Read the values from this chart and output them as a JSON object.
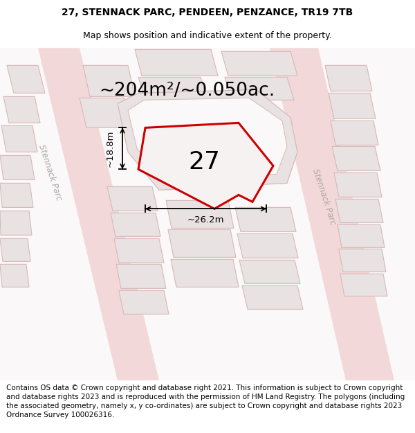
{
  "title_line1": "27, STENNACK PARC, PENDEEN, PENZANCE, TR19 7TB",
  "title_line2": "Map shows position and indicative extent of the property.",
  "area_label": "~204m²/~0.050ac.",
  "house_number": "27",
  "dim_width": "~26.2m",
  "dim_height": "~18.8m",
  "footer_text": "Contains OS data © Crown copyright and database right 2021. This information is subject to Crown copyright and database rights 2023 and is reproduced with the permission of HM Land Registry. The polygons (including the associated geometry, namely x, y co-ordinates) are subject to Crown copyright and database rights 2023 Ordnance Survey 100026316.",
  "map_bg": "#faf8f8",
  "road_fill": "#f2d8d8",
  "road_edge": "#e8c0c0",
  "bld_fill": "#e8e2e2",
  "bld_edge": "#d8b8b8",
  "prop_fill": "#f7f2f2",
  "prop_edge": "#cc0000",
  "text_gray": "#b0a8a8",
  "title_fontsize": 10,
  "subtitle_fontsize": 9,
  "area_fontsize": 19,
  "number_fontsize": 26,
  "dim_fontsize": 9.5,
  "footer_fontsize": 7.5,
  "street_fontsize": 8.5
}
